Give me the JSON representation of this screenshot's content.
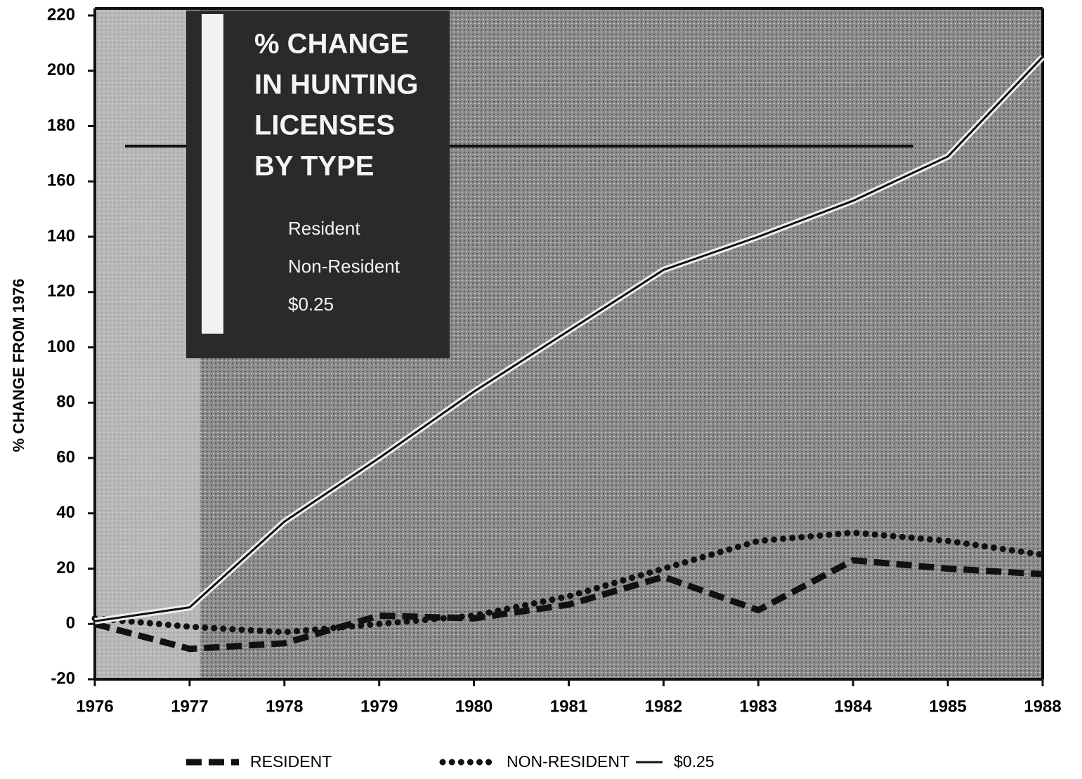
{
  "chart_data": {
    "type": "line",
    "title": [
      "% CHANGE",
      "IN HUNTING",
      "LICENSES",
      "BY TYPE"
    ],
    "inset_items": [
      "Resident",
      "Non-Resident",
      "$0.25"
    ],
    "y_label": "% CHANGE FROM 1976",
    "categories": [
      "1976",
      "1977",
      "1978",
      "1979",
      "1980",
      "1981",
      "1982",
      "1983",
      "1984",
      "1985",
      "1988"
    ],
    "series": [
      {
        "name": "RESIDENT",
        "color": "#111111",
        "style": "dashed",
        "values": [
          0,
          -9,
          -7,
          3,
          2,
          7,
          17,
          5,
          23,
          20,
          18
        ]
      },
      {
        "name": "NON-RESIDENT",
        "color": "#111111",
        "style": "dotted",
        "values": [
          2,
          -1,
          -3,
          0,
          3,
          10,
          20,
          30,
          33,
          30,
          25
        ]
      },
      {
        "name": "$0.25",
        "color": "#111111",
        "style": "solid",
        "values": [
          1,
          6,
          37,
          60,
          84,
          106,
          128,
          140,
          153,
          169,
          205
        ]
      }
    ],
    "ylim": [
      -20,
      220
    ],
    "yticks": [
      -20,
      0,
      20,
      40,
      60,
      80,
      100,
      120,
      140,
      160,
      180,
      200,
      220
    ]
  }
}
